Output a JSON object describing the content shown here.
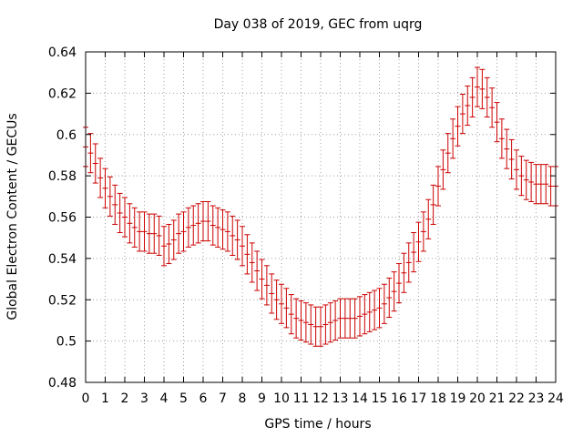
{
  "chart_data": {
    "type": "scatter",
    "title": "Day 038 of 2019, GEC from uqrg",
    "xlabel": "GPS time / hours",
    "ylabel": "Global Electron Content / GECUs",
    "xlim": [
      0,
      24
    ],
    "ylim": [
      0.48,
      0.64
    ],
    "grid": true,
    "x_ticks": [
      "0",
      "1",
      "2",
      "3",
      "4",
      "5",
      "6",
      "7",
      "8",
      "9",
      "10",
      "11",
      "12",
      "13",
      "14",
      "15",
      "16",
      "17",
      "18",
      "19",
      "20",
      "21",
      "22",
      "23",
      "24"
    ],
    "y_ticks": [
      "0.48",
      "0.5",
      "0.52",
      "0.54",
      "0.56",
      "0.58",
      "0.6",
      "0.62",
      "0.64"
    ],
    "series": [
      {
        "name": "GEC",
        "color": "#cc0000",
        "error": 0.0095,
        "x": [
          0,
          0.25,
          0.5,
          0.75,
          1,
          1.25,
          1.5,
          1.75,
          2,
          2.25,
          2.5,
          2.75,
          3,
          3.25,
          3.5,
          3.75,
          4,
          4.25,
          4.5,
          4.75,
          5,
          5.25,
          5.5,
          5.75,
          6,
          6.25,
          6.5,
          6.75,
          7,
          7.25,
          7.5,
          7.75,
          8,
          8.25,
          8.5,
          8.75,
          9,
          9.25,
          9.5,
          9.75,
          10,
          10.25,
          10.5,
          10.75,
          11,
          11.25,
          11.5,
          11.75,
          12,
          12.25,
          12.5,
          12.75,
          13,
          13.25,
          13.5,
          13.75,
          14,
          14.25,
          14.5,
          14.75,
          15,
          15.25,
          15.5,
          15.75,
          16,
          16.25,
          16.5,
          16.75,
          17,
          17.25,
          17.5,
          17.75,
          18,
          18.25,
          18.5,
          18.75,
          19,
          19.25,
          19.5,
          19.75,
          20,
          20.25,
          20.5,
          20.75,
          21,
          21.25,
          21.5,
          21.75,
          22,
          22.25,
          22.5,
          22.75,
          23,
          23.25,
          23.5,
          23.75,
          24
        ],
        "y": [
          0.594,
          0.591,
          0.586,
          0.579,
          0.574,
          0.57,
          0.566,
          0.562,
          0.56,
          0.557,
          0.555,
          0.553,
          0.553,
          0.552,
          0.552,
          0.551,
          0.546,
          0.547,
          0.549,
          0.552,
          0.553,
          0.555,
          0.556,
          0.557,
          0.558,
          0.558,
          0.556,
          0.555,
          0.554,
          0.553,
          0.551,
          0.549,
          0.546,
          0.542,
          0.538,
          0.534,
          0.53,
          0.527,
          0.523,
          0.52,
          0.518,
          0.516,
          0.513,
          0.511,
          0.51,
          0.509,
          0.508,
          0.507,
          0.507,
          0.508,
          0.509,
          0.51,
          0.511,
          0.511,
          0.511,
          0.511,
          0.512,
          0.513,
          0.514,
          0.515,
          0.516,
          0.518,
          0.521,
          0.524,
          0.528,
          0.533,
          0.538,
          0.543,
          0.548,
          0.553,
          0.559,
          0.566,
          0.575,
          0.583,
          0.591,
          0.598,
          0.604,
          0.61,
          0.614,
          0.618,
          0.623,
          0.622,
          0.618,
          0.613,
          0.606,
          0.598,
          0.593,
          0.588,
          0.583,
          0.58,
          0.578,
          0.577,
          0.576,
          0.576,
          0.576,
          0.575,
          0.575
        ]
      }
    ]
  }
}
